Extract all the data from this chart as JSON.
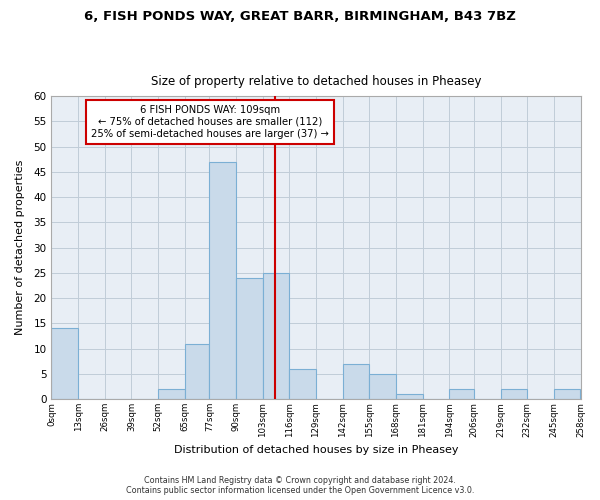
{
  "title": "6, FISH PONDS WAY, GREAT BARR, BIRMINGHAM, B43 7BZ",
  "subtitle": "Size of property relative to detached houses in Pheasey",
  "xlabel": "Distribution of detached houses by size in Pheasey",
  "ylabel": "Number of detached properties",
  "bar_edges": [
    0,
    13,
    26,
    39,
    52,
    65,
    77,
    90,
    103,
    116,
    129,
    142,
    155,
    168,
    181,
    194,
    206,
    219,
    232,
    245,
    258
  ],
  "bar_heights": [
    14,
    0,
    0,
    0,
    2,
    11,
    47,
    24,
    25,
    6,
    0,
    7,
    5,
    1,
    0,
    2,
    0,
    2,
    0,
    2
  ],
  "tick_labels": [
    "0sqm",
    "13sqm",
    "26sqm",
    "39sqm",
    "52sqm",
    "65sqm",
    "77sqm",
    "90sqm",
    "103sqm",
    "116sqm",
    "129sqm",
    "142sqm",
    "155sqm",
    "168sqm",
    "181sqm",
    "194sqm",
    "206sqm",
    "219sqm",
    "232sqm",
    "245sqm",
    "258sqm"
  ],
  "bar_color": "#c9daea",
  "bar_edge_color": "#7bafd4",
  "vline_x": 109,
  "vline_color": "#cc0000",
  "annotation_box_edge_color": "#cc0000",
  "annotation_line1": "6 FISH PONDS WAY: 109sqm",
  "annotation_line2": "← 75% of detached houses are smaller (112)",
  "annotation_line3": "25% of semi-detached houses are larger (37) →",
  "ylim": [
    0,
    60
  ],
  "yticks": [
    0,
    5,
    10,
    15,
    20,
    25,
    30,
    35,
    40,
    45,
    50,
    55,
    60
  ],
  "footer_line1": "Contains HM Land Registry data © Crown copyright and database right 2024.",
  "footer_line2": "Contains public sector information licensed under the Open Government Licence v3.0.",
  "plot_bg_color": "#e8eef5",
  "fig_bg_color": "#ffffff"
}
